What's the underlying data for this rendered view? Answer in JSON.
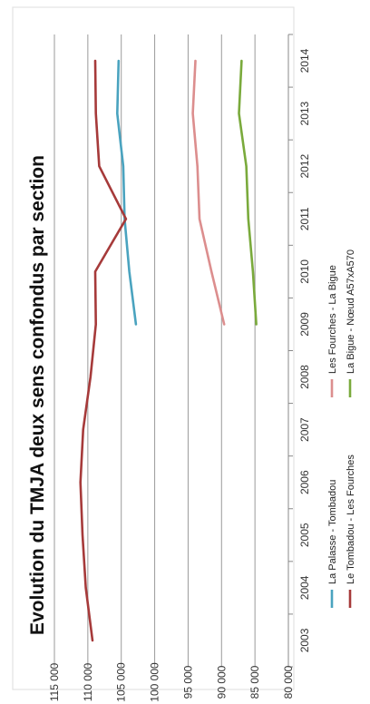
{
  "chart_data": {
    "type": "line",
    "title": "Evolution du TMJA deux sens confondus par section",
    "xlabel": "",
    "ylabel": "",
    "x": [
      "2003",
      "2004",
      "2005",
      "2006",
      "2007",
      "2008",
      "2009",
      "2010",
      "2011",
      "2012",
      "2013",
      "2014"
    ],
    "y_ticks": [
      "115 000",
      "110 000",
      "105 000",
      "100 000",
      "95 000",
      "90 000",
      "85 000",
      "80 000"
    ],
    "ylim": [
      80000,
      115000
    ],
    "grid": true,
    "legend_position": "bottom",
    "orientation": "rotated-90-clockwise",
    "series": [
      {
        "name": "La Palasse - Tombadou",
        "color": "#4aa3bf",
        "values": [
          null,
          null,
          null,
          null,
          null,
          null,
          102800,
          103800,
          104500,
          104700,
          105600,
          105400
        ]
      },
      {
        "name": "Le Tombadou - Les Fourches",
        "color": "#a63a3a",
        "values": [
          109300,
          110300,
          110800,
          111100,
          110700,
          109600,
          108800,
          108900,
          104300,
          108300,
          108800,
          108900
        ]
      },
      {
        "name": "Les Fourches - La Bigue",
        "color": "#dc8e8e",
        "values": [
          null,
          null,
          null,
          null,
          null,
          null,
          89600,
          91500,
          93300,
          93600,
          94300,
          93900
        ]
      },
      {
        "name": "La Bigue - Nœud A57xA570",
        "color": "#7aaa3c",
        "values": [
          null,
          null,
          null,
          null,
          null,
          null,
          84800,
          85300,
          86000,
          86300,
          87400,
          87000
        ]
      }
    ]
  }
}
